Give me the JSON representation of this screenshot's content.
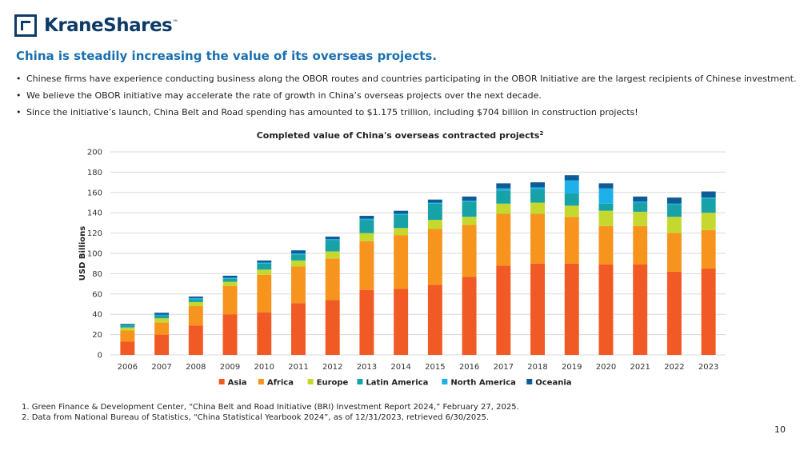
{
  "brand": {
    "name": "KraneShares",
    "trademark": "™"
  },
  "headline": "China is steadily increasing the value of its overseas projects.",
  "bullets": [
    "Chinese firms have experience conducting business along the OBOR routes and countries participating in the OBOR Initiative are the largest recipients of Chinese investment.",
    "We believe the OBOR initiative may accelerate the rate of growth in China’s overseas projects over the next decade.",
    "Since the initiative’s launch, China Belt and Road spending has amounted to $1.175 trillion, including $704 billion in construction projects!"
  ],
  "bullet_symbol": "•",
  "footnotes": [
    "1. Green Finance & Development Center, “China Belt and Road Initiative (BRI) Investment Report 2024,” February 27, 2025.",
    "2. Data from National Bureau of Statistics, “China Statistical Yearbook 2024”, as of 12/31/2023, retrieved 6/30/2025."
  ],
  "page_number": "10",
  "chart_data": {
    "type": "bar",
    "stacked": true,
    "title": "Completed value of China's overseas contracted projects",
    "title_superscript": "2",
    "ylabel": "USD Billions",
    "xlabel": "",
    "ylim": [
      0,
      200
    ],
    "yticks": [
      0,
      20,
      40,
      60,
      80,
      100,
      120,
      140,
      160,
      180,
      200
    ],
    "grid": true,
    "legend_position": "bottom",
    "categories": [
      "2006",
      "2007",
      "2008",
      "2009",
      "2010",
      "2011",
      "2012",
      "2013",
      "2014",
      "2015",
      "2016",
      "2017",
      "2018",
      "2019",
      "2020",
      "2021",
      "2022",
      "2023"
    ],
    "series": [
      {
        "name": "Asia",
        "color": "#f15a24",
        "values": [
          13,
          20,
          29,
          40,
          42,
          51,
          54,
          64,
          65,
          69,
          77,
          88,
          90,
          90,
          89,
          89,
          82,
          85
        ]
      },
      {
        "name": "Africa",
        "color": "#f7941d",
        "values": [
          11,
          12,
          19,
          28,
          37,
          36,
          41,
          48,
          53,
          55,
          51,
          51,
          49,
          46,
          38,
          38,
          38,
          38
        ]
      },
      {
        "name": "Europe",
        "color": "#c5d82e",
        "values": [
          3,
          4,
          4,
          4,
          5,
          6,
          7,
          8,
          7,
          9,
          8,
          10,
          11,
          11,
          15,
          14,
          16,
          17
        ]
      },
      {
        "name": "Latin America",
        "color": "#17a2a8",
        "values": [
          2,
          3,
          3,
          3,
          6,
          6,
          11,
          13,
          13,
          16,
          15,
          13,
          13,
          12,
          7,
          9,
          12,
          14
        ]
      },
      {
        "name": "North America",
        "color": "#1eb0e8",
        "values": [
          0.5,
          0.5,
          1,
          1,
          1,
          1,
          1,
          1,
          1,
          1,
          1,
          2,
          2,
          13,
          15,
          1,
          1,
          1
        ]
      },
      {
        "name": "Oceania",
        "color": "#0d5c96",
        "values": [
          1,
          2,
          1.5,
          2,
          2,
          3,
          2.5,
          3,
          3,
          3,
          4,
          5,
          5,
          5,
          5,
          5,
          6,
          6
        ]
      }
    ]
  }
}
